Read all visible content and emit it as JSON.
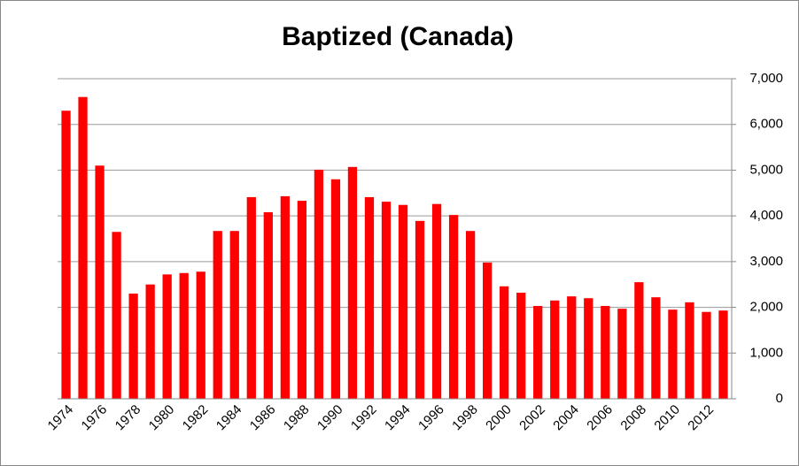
{
  "chart_data": {
    "type": "bar",
    "title": "Baptized (Canada)",
    "categories": [
      "1974",
      null,
      "1976",
      null,
      "1978",
      null,
      "1980",
      null,
      "1982",
      null,
      "1984",
      null,
      "1986",
      null,
      "1988",
      null,
      "1990",
      null,
      "1992",
      null,
      "1994",
      null,
      "1996",
      null,
      "1998",
      null,
      "2000",
      null,
      "2002",
      null,
      "2004",
      null,
      "2006",
      null,
      "2008",
      null,
      "2010",
      null,
      "2012",
      null
    ],
    "values": [
      6300,
      6600,
      5100,
      3650,
      2300,
      2500,
      2720,
      2750,
      2780,
      3670,
      3670,
      4410,
      4080,
      4430,
      4330,
      5010,
      4800,
      5070,
      4410,
      4310,
      4240,
      3890,
      4260,
      4020,
      3670,
      2980,
      2460,
      2320,
      2030,
      2150,
      2240,
      2200,
      2030,
      1970,
      2550,
      2220,
      1950,
      2110,
      1900,
      1930
    ],
    "color": "#ff0000",
    "ylim": [
      0,
      7000
    ],
    "yticks": [
      0,
      {
        "value": 1000,
        "label": "1,000"
      },
      {
        "value": 2000,
        "label": "2,000"
      },
      {
        "value": 3000,
        "label": "3,000"
      },
      {
        "value": 4000,
        "label": "4,000"
      },
      {
        "value": 5000,
        "label": "5,000"
      },
      {
        "value": 6000,
        "label": "6,000"
      },
      {
        "value": 7000,
        "label": "7,000"
      }
    ],
    "grid": true,
    "y_axis_side": "right"
  }
}
